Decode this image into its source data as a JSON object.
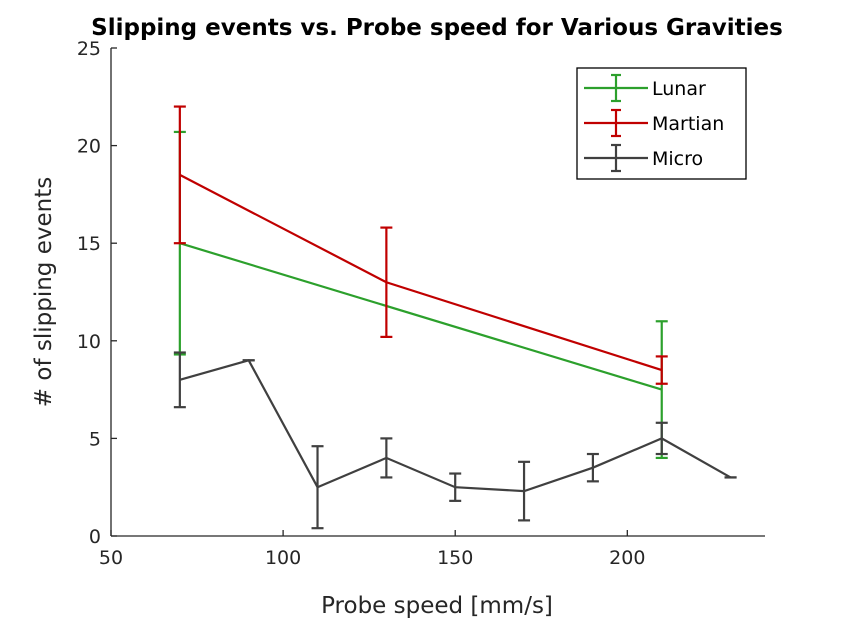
{
  "chart_data": {
    "type": "line",
    "title": "Slipping events vs. Probe speed for Various Gravities",
    "xlabel": "Probe speed [mm/s]",
    "ylabel": "# of slipping events",
    "xlim": [
      50,
      240
    ],
    "ylim": [
      0,
      25
    ],
    "xticks": [
      50,
      100,
      150,
      200
    ],
    "yticks": [
      0,
      5,
      10,
      15,
      20,
      25
    ],
    "grid": false,
    "legend_position": "top-right",
    "error_bars": true,
    "series": [
      {
        "name": "Lunar",
        "color": "#2ca02c",
        "x": [
          70,
          210
        ],
        "y": [
          15,
          7.5
        ],
        "err": [
          5.7,
          3.5
        ]
      },
      {
        "name": "Martian",
        "color": "#c00000",
        "x": [
          70,
          130,
          210
        ],
        "y": [
          18.5,
          13,
          8.5
        ],
        "err": [
          3.5,
          2.8,
          0.7
        ]
      },
      {
        "name": "Micro",
        "color": "#404040",
        "x": [
          70,
          90,
          110,
          130,
          150,
          170,
          190,
          210,
          230
        ],
        "y": [
          8,
          9,
          2.5,
          4,
          2.5,
          2.3,
          3.5,
          5,
          3
        ],
        "err": [
          1.4,
          0,
          2.1,
          1,
          0.7,
          1.5,
          0.7,
          0.8,
          0
        ]
      }
    ]
  }
}
